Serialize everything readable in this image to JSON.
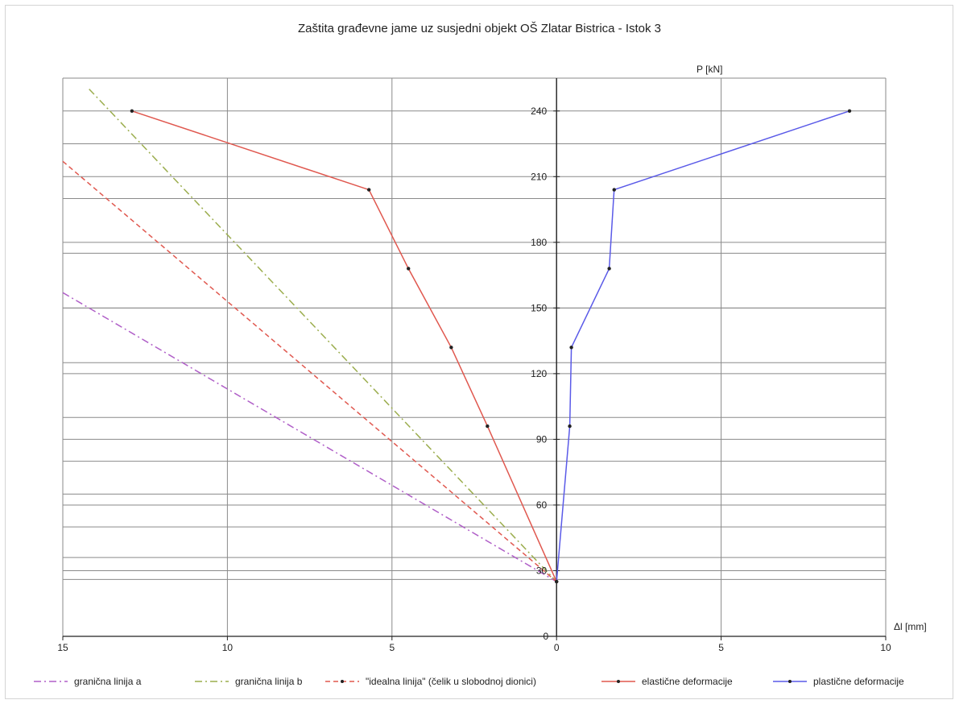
{
  "chart_data": {
    "type": "line",
    "title": "Zaštita građevne jame uz susjedni objekt OŠ Zlatar Bistrica - Istok 3",
    "xlabel": "Δl [mm]",
    "ylabel": "P [kN]",
    "xlim": [
      -15,
      10
    ],
    "ylim": [
      0,
      255
    ],
    "x_tick_values": [
      -15,
      -10,
      -5,
      0,
      5,
      10
    ],
    "x_tick_labels": [
      "15",
      "10",
      "5",
      "0",
      "5",
      "10"
    ],
    "y_tick_values": [
      30,
      60,
      90,
      120,
      150,
      180,
      210,
      240
    ],
    "y_tick_labels": [
      "30",
      "60",
      "90",
      "120",
      "150",
      "180",
      "210",
      "240"
    ],
    "extra_gridlines_y": [
      26,
      36,
      50,
      65,
      80,
      100,
      125,
      150,
      175,
      200,
      225
    ],
    "grid": true,
    "legend_position": "bottom",
    "series": [
      {
        "name": "granična linija a",
        "color": "#b05fc8",
        "style": "dashdot",
        "markers": false,
        "x": [
          -15,
          0
        ],
        "y": [
          157,
          25
        ]
      },
      {
        "name": "granična linija b",
        "color": "#9bad4d",
        "style": "dashdot",
        "markers": false,
        "x": [
          -14.2,
          0
        ],
        "y": [
          250,
          25
        ]
      },
      {
        "name": "\"idealna linija\" (čelik u slobodnoj dionici)",
        "color": "#e0584f",
        "style": "dashed",
        "markers": false,
        "x": [
          -15,
          0
        ],
        "y": [
          217,
          25
        ]
      },
      {
        "name": "elastične deformacije",
        "color": "#e0584f",
        "style": "solid",
        "markers": true,
        "x": [
          0,
          -2.1,
          -3.2,
          -4.5,
          -5.7,
          -12.9
        ],
        "y": [
          25,
          96,
          132,
          168,
          204,
          240
        ]
      },
      {
        "name": "plastične deformacije",
        "color": "#5a5ae8",
        "style": "solid",
        "markers": true,
        "x": [
          0,
          0.4,
          0.45,
          1.6,
          1.75,
          8.9
        ],
        "y": [
          25,
          96,
          132,
          168,
          204,
          240
        ]
      }
    ]
  }
}
